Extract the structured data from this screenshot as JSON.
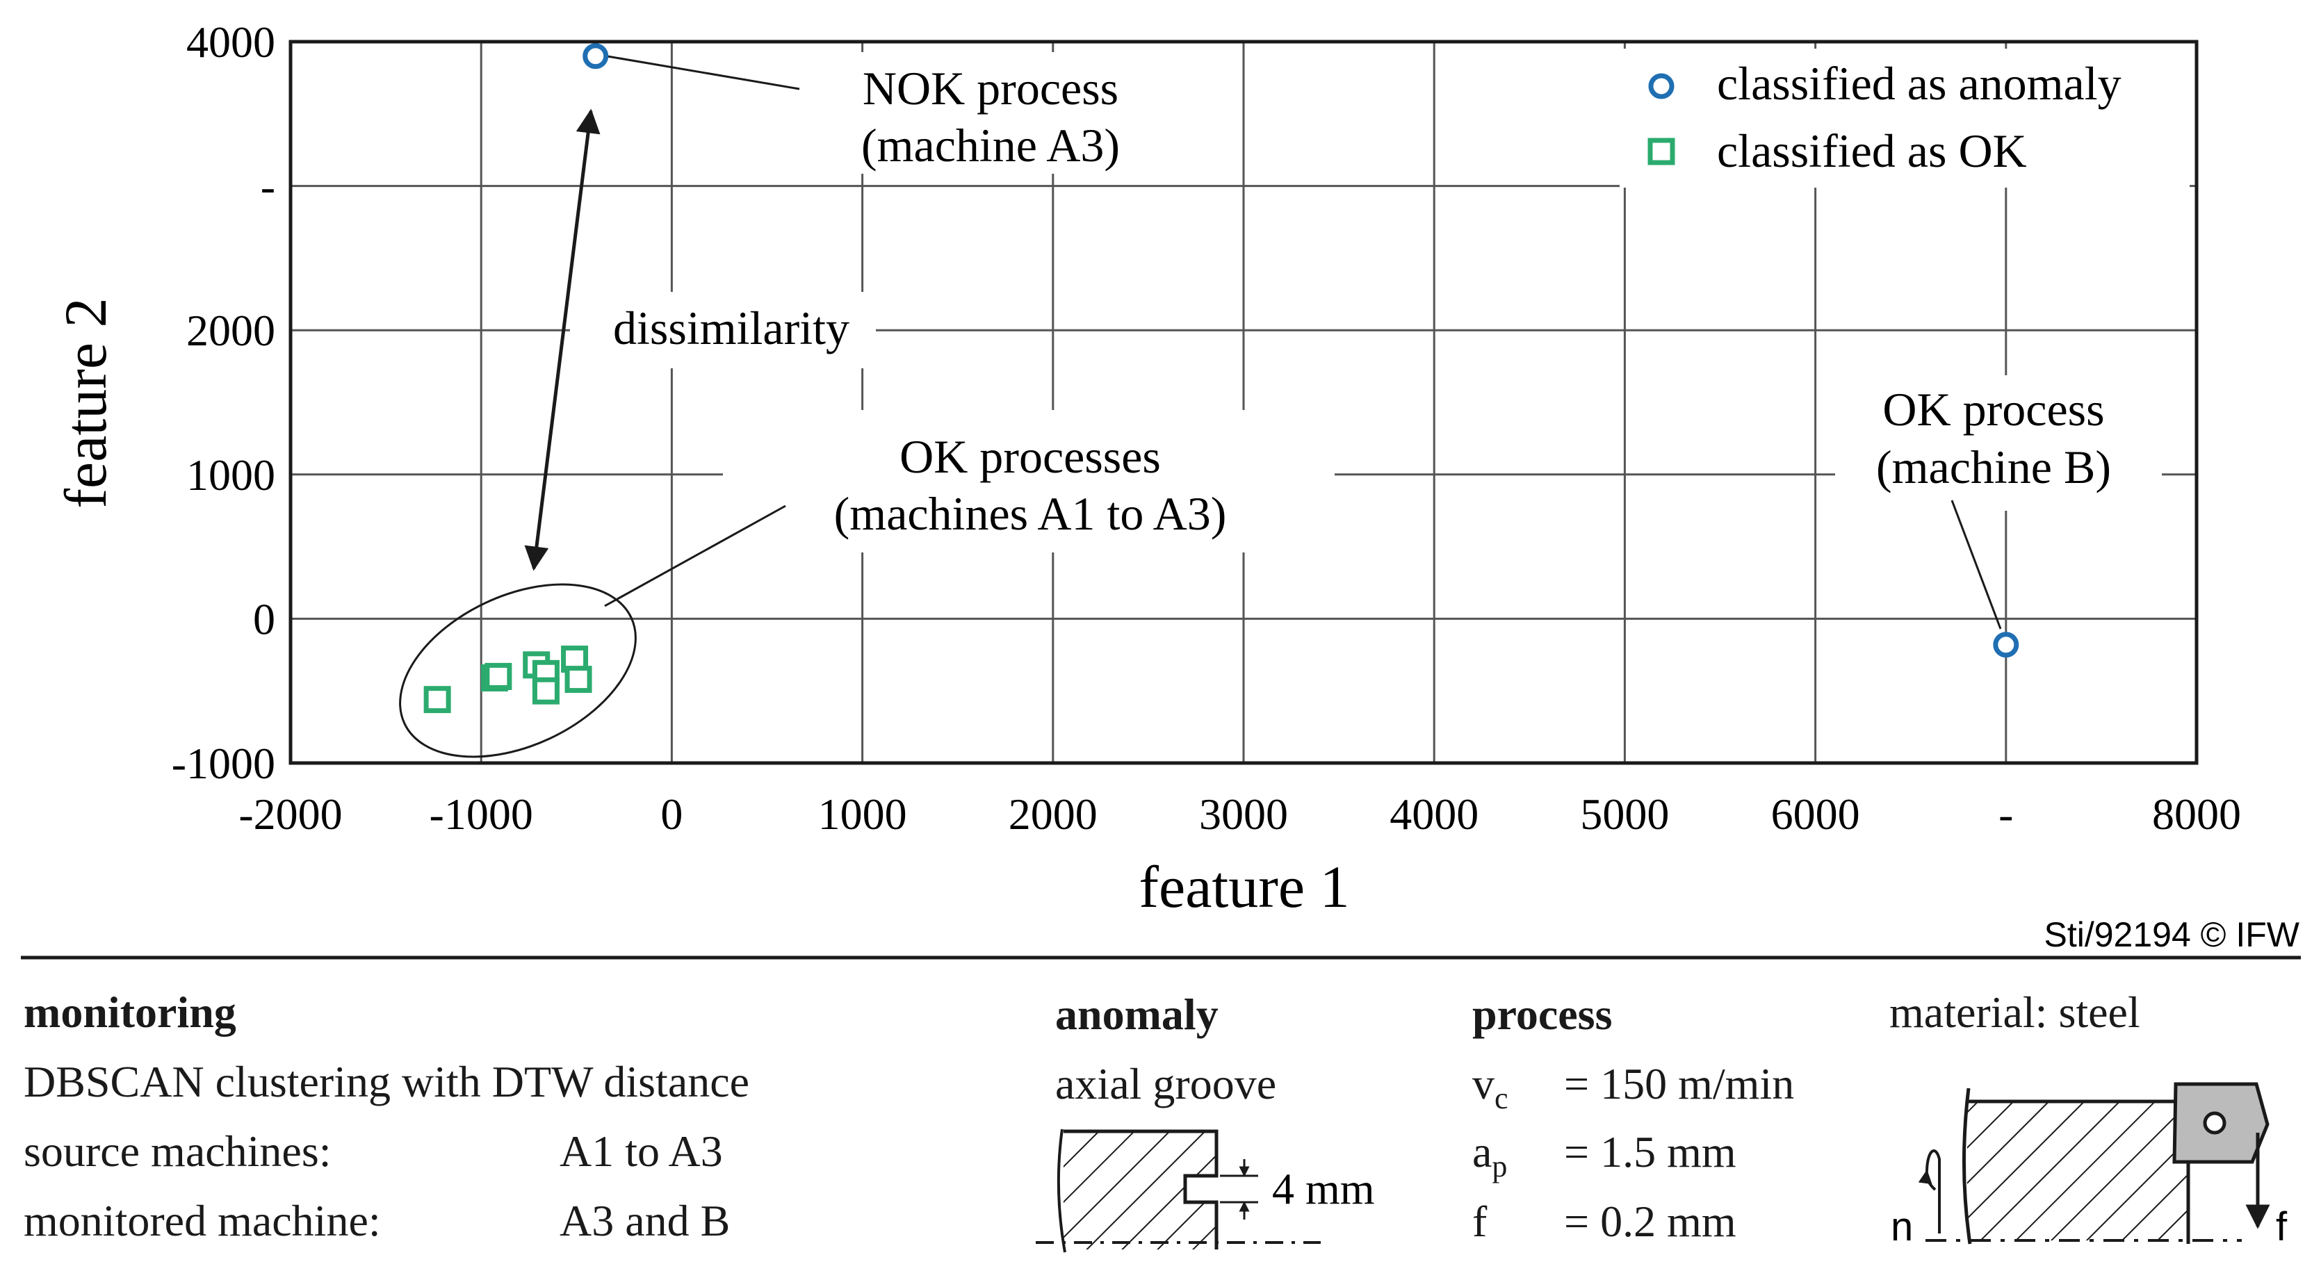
{
  "chart_data": {
    "type": "scatter",
    "xlabel": "feature 1",
    "ylabel": "feature 2",
    "xlim": [
      -2000,
      8000
    ],
    "ylim": [
      -1000,
      4000
    ],
    "xticks": [
      -2000,
      -1000,
      0,
      1000,
      2000,
      3000,
      4000,
      5000,
      6000,
      7000,
      8000
    ],
    "xtick_labels": [
      "-2000",
      "-1000",
      "0",
      "1000",
      "2000",
      "3000",
      "4000",
      "5000",
      "6000",
      "-",
      "8000"
    ],
    "yticks": [
      -1000,
      0,
      1000,
      2000,
      3000,
      4000
    ],
    "ytick_labels": [
      "-1000",
      "0",
      "1000",
      "2000",
      "-",
      "4000"
    ],
    "grid": true,
    "legend_position": "top-right",
    "series": [
      {
        "name": "classified as anomaly",
        "marker": "circle",
        "color": "#1f6fb2",
        "points": [
          [
            -400,
            3900
          ],
          [
            7000,
            -180
          ]
        ]
      },
      {
        "name": "classified as OK",
        "marker": "square",
        "color": "#2bab6e",
        "points": [
          [
            -1230,
            -560
          ],
          [
            -930,
            -410
          ],
          [
            -910,
            -400
          ],
          [
            -710,
            -320
          ],
          [
            -660,
            -380
          ],
          [
            -660,
            -500
          ],
          [
            -510,
            -280
          ],
          [
            -490,
            -420
          ]
        ]
      }
    ],
    "annotations": {
      "nok": [
        "NOK process",
        "(machine A3)"
      ],
      "dissimilarity": "dissimilarity",
      "ok_group": [
        "OK processes",
        "(machines A1 to A3)"
      ],
      "ok_b": [
        "OK process",
        "(machine B)"
      ]
    }
  },
  "copyright": "Sti/92194 © IFW",
  "monitoring": {
    "heading": "monitoring",
    "method": "DBSCAN clustering with DTW distance",
    "source_label": "source machines:",
    "source_value": "A1 to A3",
    "monitored_label": "monitored machine:",
    "monitored_value": "A3 and B"
  },
  "anomaly": {
    "heading": "anomaly",
    "type": "axial groove",
    "groove_depth": "4 mm"
  },
  "process": {
    "heading": "process",
    "vc_symbol": "v",
    "vc_sub": "c",
    "vc_value": "= 150 m/min",
    "ap_symbol": "a",
    "ap_sub": "p",
    "ap_value": "= 1.5 mm",
    "f_symbol": "f",
    "f_value": "= 0.2 mm"
  },
  "material": {
    "label": "material: steel",
    "n_label": "n",
    "f_label": "f"
  }
}
